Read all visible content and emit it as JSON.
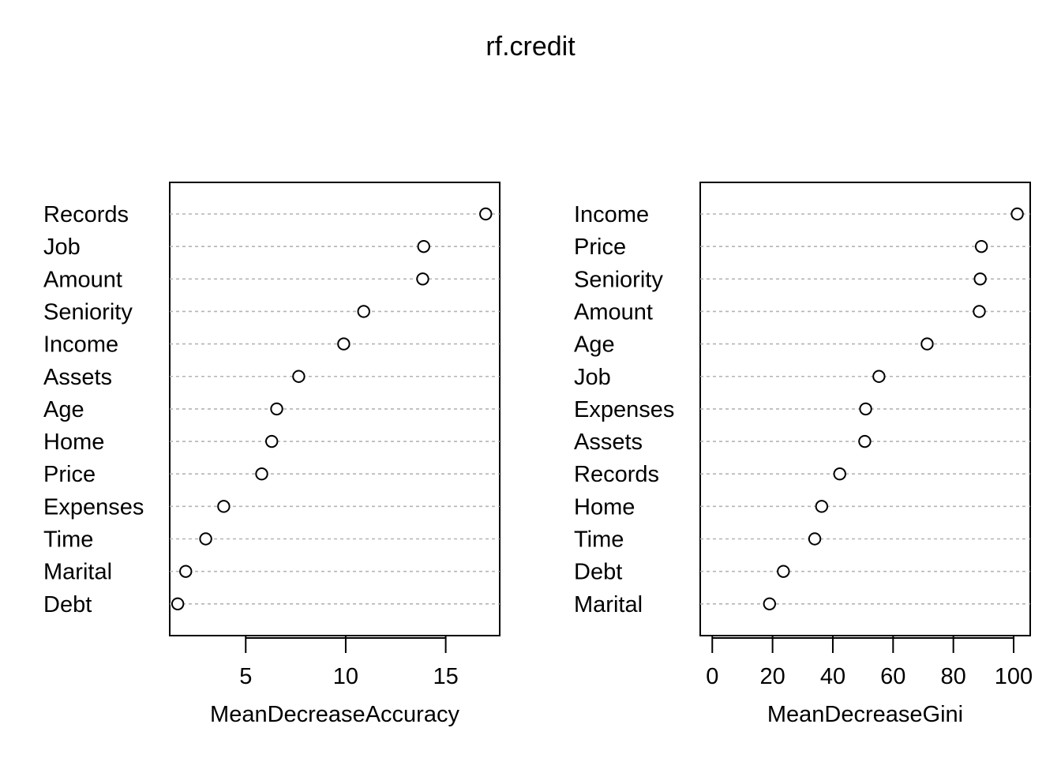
{
  "chart_data": {
    "title": "rf.credit",
    "panels": [
      {
        "type": "scatter",
        "xlabel": "MeanDecreaseAccuracy",
        "xlim": [
          1.2,
          17.7
        ],
        "xticks": [
          5,
          10,
          15
        ],
        "categories": [
          "Records",
          "Job",
          "Amount",
          "Seniority",
          "Income",
          "Assets",
          "Age",
          "Home",
          "Price",
          "Expenses",
          "Time",
          "Marital",
          "Debt"
        ],
        "values": [
          17.0,
          13.9,
          13.85,
          10.9,
          9.9,
          7.65,
          6.55,
          6.3,
          5.8,
          3.9,
          3.0,
          2.0,
          1.6
        ]
      },
      {
        "type": "scatter",
        "xlabel": "MeanDecreaseGini",
        "xlim": [
          -4,
          105.5
        ],
        "xticks": [
          0,
          20,
          40,
          60,
          80,
          100
        ],
        "categories": [
          "Income",
          "Price",
          "Seniority",
          "Amount",
          "Age",
          "Job",
          "Expenses",
          "Assets",
          "Records",
          "Home",
          "Time",
          "Debt",
          "Marital"
        ],
        "values": [
          101.2,
          89.3,
          88.9,
          88.6,
          71.3,
          55.3,
          50.9,
          50.6,
          42.3,
          36.3,
          34.0,
          23.6,
          19.0
        ]
      }
    ]
  }
}
